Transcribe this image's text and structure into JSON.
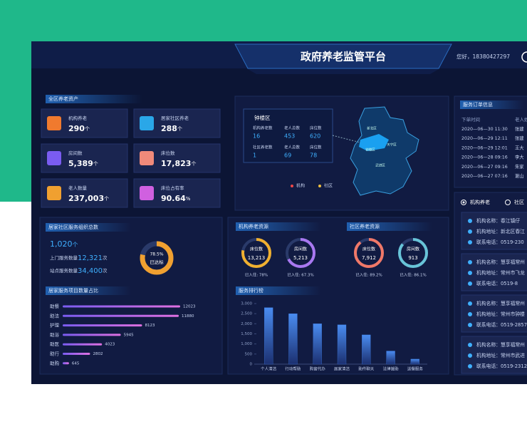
{
  "header": {
    "title": "政府养老监管平台",
    "greeting": "您好，18380427297"
  },
  "assets": {
    "title": "全区养老资产",
    "cards": [
      {
        "label": "机构养老",
        "value": "290",
        "unit": "个"
      },
      {
        "label": "居家社区养老",
        "value": "288",
        "unit": "个"
      },
      {
        "label": "房间数",
        "value": "5,389",
        "unit": "个"
      },
      {
        "label": "床位数",
        "value": "17,823",
        "unit": "个"
      },
      {
        "label": "老人数量",
        "value": "237,003",
        "unit": "个"
      },
      {
        "label": "床位占有率",
        "value": "90.64",
        "unit": "%"
      }
    ]
  },
  "map": {
    "district": "钟楼区",
    "table": [
      [
        "机构养老数",
        "老人总数",
        "床位数"
      ],
      [
        "16",
        "453",
        "620"
      ],
      [
        "社区养老数",
        "老人总数",
        "床位数"
      ],
      [
        "1",
        "69",
        "78"
      ]
    ],
    "legend": [
      "机构",
      "社区"
    ],
    "places": [
      "新北区",
      "天宁区",
      "钟楼区",
      "武进区"
    ]
  },
  "orders": {
    "title": "服务订单信息",
    "headers": [
      "下单时间",
      "老人姓"
    ],
    "rows": [
      [
        "2020—06—30 11:30",
        "张建"
      ],
      [
        "2020—06—29 12:11",
        "张建"
      ],
      [
        "2020—06—29 12:01",
        "王大"
      ],
      [
        "2020—06—28 09:16",
        "李大"
      ],
      [
        "2020—06—27 09:16",
        "朱家"
      ],
      [
        "2020—06—27 07:16",
        "谢山"
      ]
    ]
  },
  "institutions": {
    "tabs": [
      "机构养老",
      "社区"
    ],
    "cards": [
      [
        "机构名称：春江镇仔",
        "机构地址：新北区春江",
        "联系电话：0519-230"
      ],
      [
        "机构名称：慧享福常州",
        "机构地址：常州市飞龙",
        "联系电话：0519-8"
      ],
      [
        "机构名称：慧享福常州",
        "机构地址：常州市钟楼",
        "联系电话：0519-2857"
      ],
      [
        "机构名称：慧享福常州",
        "机构地址：常州市武进",
        "联系电话：0519-2312"
      ]
    ]
  },
  "organizations": {
    "title": "居家社区服务组织总数",
    "total": "1,020",
    "total_unit": "个",
    "stats": [
      {
        "label": "上门服务数量",
        "value": "12,321",
        "unit": "次"
      },
      {
        "label": "站点服务数量",
        "value": "34,400",
        "unit": "次"
      }
    ],
    "donut": {
      "value": 78.5,
      "label": "78.5%",
      "text": "已达标"
    }
  },
  "service_items": {
    "type": "bar",
    "title": "居家服务项目数量占比",
    "categories": [
      "助餐",
      "助洁",
      "护理",
      "助浴",
      "助医",
      "助行",
      "助购"
    ],
    "values": [
      12023,
      11880,
      8123,
      5945,
      4023,
      2802,
      645
    ]
  },
  "institution_resources": {
    "title": "机构养老资源",
    "rings": [
      {
        "label": "床位数",
        "value": "13,213",
        "occupancy": 78,
        "occupancy_label": "已入住: 78%",
        "color": "#f0b030"
      },
      {
        "label": "房间数",
        "value": "5,213",
        "occupancy": 67.3,
        "occupancy_label": "已入住: 67.3%",
        "color": "#a878f0"
      }
    ]
  },
  "community_resources": {
    "title": "社区养老资源",
    "rings": [
      {
        "label": "床位数",
        "value": "7,912",
        "occupancy": 89.2,
        "occupancy_label": "已入住: 89.2%",
        "color": "#f07868"
      },
      {
        "label": "房间数",
        "value": "913",
        "occupancy": 86.1,
        "occupancy_label": "已入住: 86.1%",
        "color": "#68c4d8"
      }
    ]
  },
  "ranking": {
    "type": "bar",
    "title": "服务排行榜",
    "categories": [
      "个人清洁",
      "行动帮助",
      "购留代办",
      "居家清洁",
      "助件聊天",
      "法律援助",
      "送餐服务"
    ],
    "values": [
      2800,
      2500,
      2000,
      1950,
      1450,
      650,
      250
    ],
    "ylim": [
      0,
      3000
    ],
    "yticks": [
      0,
      500,
      {
        "value": 1000,
        "label": "1,000"
      },
      {
        "value": 1500,
        "label": "1,500"
      },
      {
        "value": 2000,
        "label": "2,000"
      },
      {
        "value": 2500,
        "label": "2,500"
      },
      {
        "value": 3000,
        "label": "3,000"
      }
    ],
    "color": "#3f7fe8"
  }
}
